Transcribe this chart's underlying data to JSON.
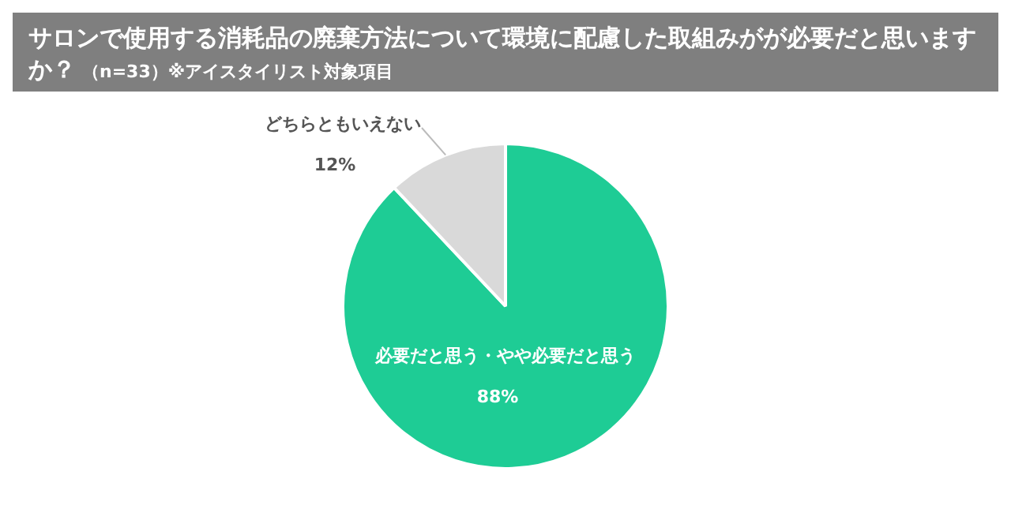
{
  "chart_data": {
    "type": "pie",
    "title": "サロンで使用する消耗品の廃棄方法について環境に配慮した取組みがが必要だと思いますか？",
    "subtitle": "（n=33）※アイスタイリスト対象項目",
    "categories": [
      "必要だと思う・やや必要だと思う",
      "どちらともいえない"
    ],
    "values": [
      88,
      12
    ],
    "value_labels": [
      "88%",
      "12%"
    ],
    "colors": [
      "#1ecc95",
      "#d9d9d9"
    ],
    "legend": false
  }
}
